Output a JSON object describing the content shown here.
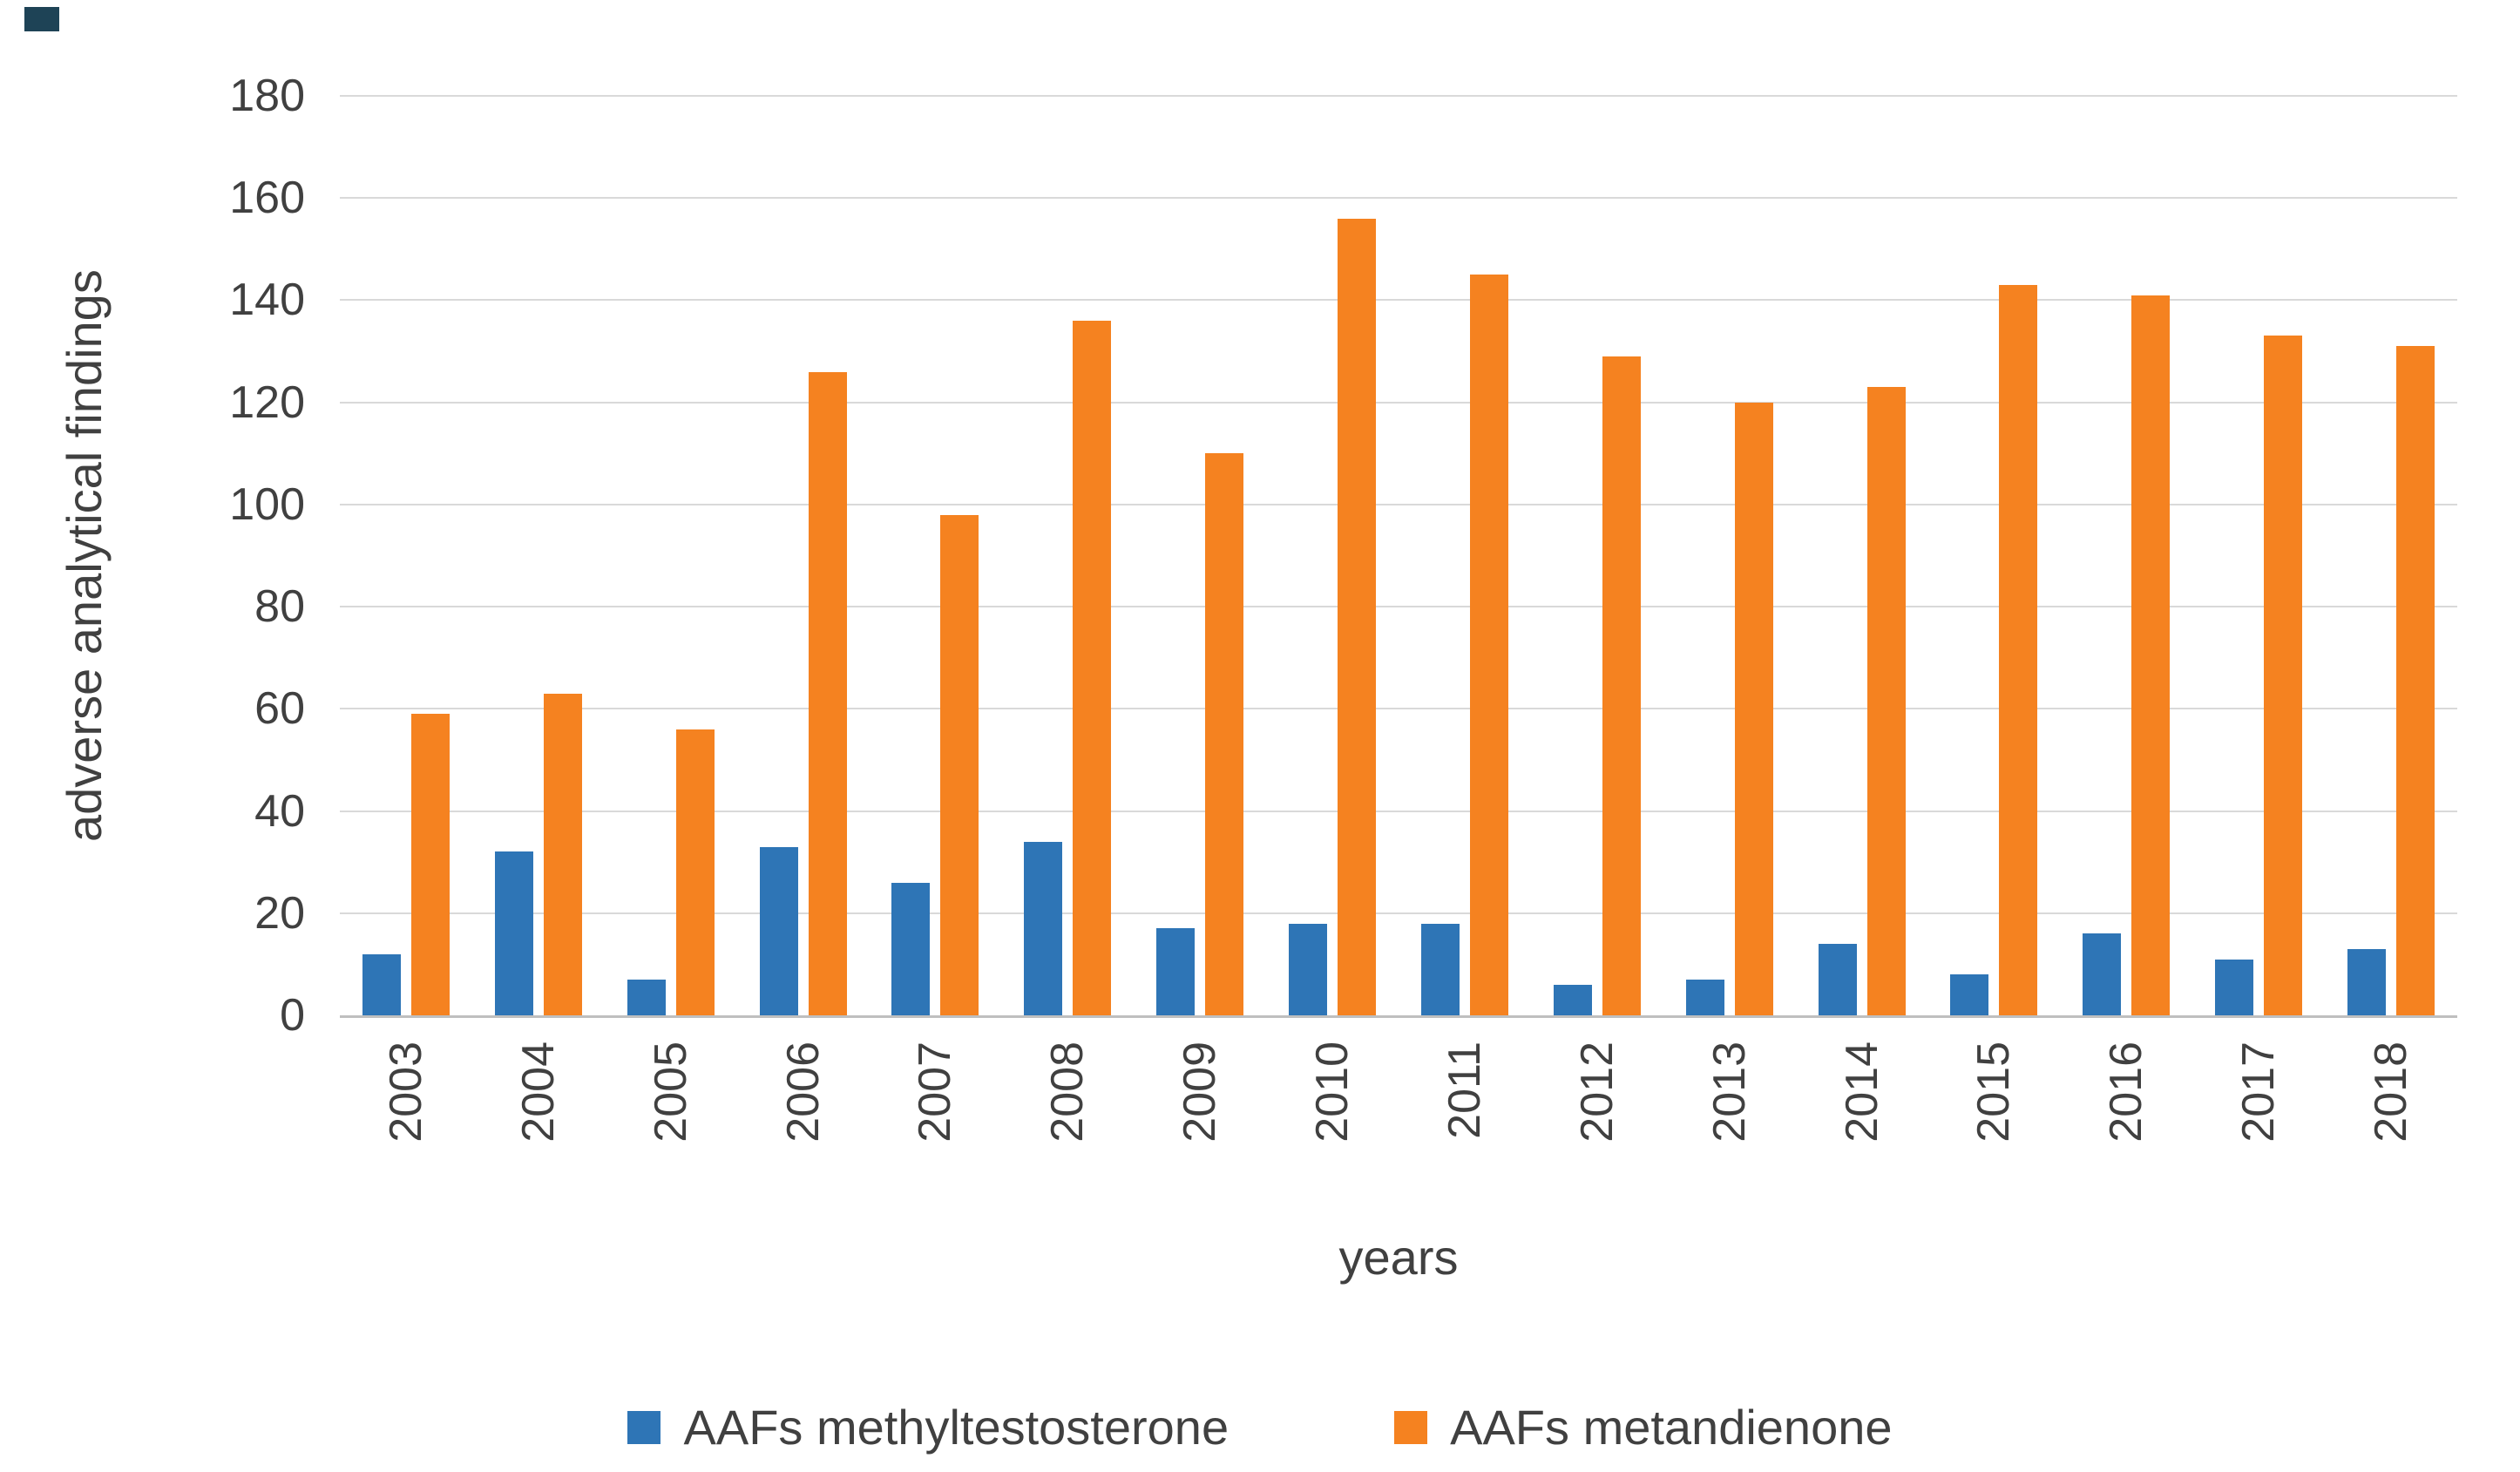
{
  "decor": {
    "corner_mark_color": "#1e4356"
  },
  "chart_data": {
    "type": "bar",
    "title": "",
    "xlabel": "years",
    "ylabel": "adverse analytical findings",
    "ylim": [
      0,
      180
    ],
    "ytick_step": 20,
    "grid": true,
    "grid_color": "#d9d9d9",
    "axis_line_color": "#bfbfbf",
    "legend_position": "bottom",
    "categories": [
      "2003",
      "2004",
      "2005",
      "2006",
      "2007",
      "2008",
      "2009",
      "2010",
      "2011",
      "2012",
      "2013",
      "2014",
      "2015",
      "2016",
      "2017",
      "2018"
    ],
    "series": [
      {
        "name": "AAFs methyltestosterone",
        "color": "#2e75b6",
        "values": [
          12,
          32,
          7,
          33,
          26,
          34,
          17,
          18,
          18,
          6,
          7,
          14,
          8,
          16,
          11,
          13
        ]
      },
      {
        "name": "AAFs metandienone",
        "color": "#f58220",
        "values": [
          59,
          63,
          56,
          126,
          98,
          136,
          110,
          156,
          145,
          129,
          120,
          123,
          143,
          141,
          133,
          131
        ]
      }
    ]
  }
}
